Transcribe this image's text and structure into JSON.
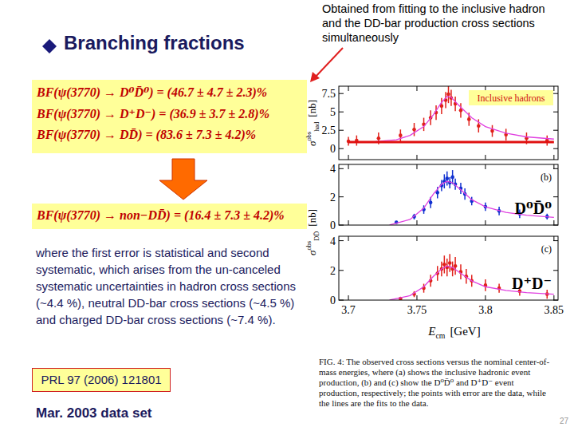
{
  "slide": {
    "heading": "Branching fractions",
    "callout": "Obtained from fitting to the inclusive hadron and the DD-bar production cross sections simultaneously",
    "formulas": [
      "BF(ψ(3770) → D⁰D̄⁰) = (46.7 ± 4.7 ± 2.3)%",
      "BF(ψ(3770) → D⁺D⁻) = (36.9 ± 3.7 ± 2.8)%",
      "BF(ψ(3770) → DD̄) = (83.6 ± 7.3 ± 4.2)%"
    ],
    "derived": "BF(ψ(3770) → non−DD̄) = (16.4 ± 7.3 ± 4.2)%",
    "note": "where the first error is statistical and second systematic, which arises from the un-canceled systematic uncertainties in hadron cross sections (~4.4 %),  neutral DD-bar cross sections (~4.5 %) and charged DD-bar cross sections (~7.4 %).",
    "reference": "PRL 97 (2006) 121801",
    "dataset": "Mar. 2003 data set",
    "caption": "FIG. 4:  The observed cross sections versus the nominal center-of-mass energies, where (a) shows the inclusive hadronic event production, (b) and (c) show the D⁰D̄⁰ and D⁺D⁻ event production, respectively; the points with error are the data, while the lines are the fits to the data.",
    "page": "27"
  },
  "chart_data": [
    {
      "type": "scatter",
      "label": "Inclusive hadrons",
      "ylabel": {
        "symbol": "σ",
        "sup": "obs",
        "sub": "had",
        "unit": "[nb]"
      },
      "xlim": [
        3.693,
        3.853
      ],
      "ylim": [
        -1.5,
        8.5
      ],
      "yticks": [
        0,
        2.5,
        5,
        7.5
      ],
      "xticks": [
        3.7,
        3.75,
        3.8,
        3.85
      ],
      "grid": false,
      "tick_labels": "y",
      "series": [
        {
          "type": "scatter",
          "color": "#e0201a",
          "marker": "circle",
          "x": [
            3.7,
            3.706,
            3.722,
            3.738,
            3.748,
            3.755,
            3.76,
            3.764,
            3.768,
            3.771,
            3.773,
            3.775,
            3.778,
            3.782,
            3.788,
            3.795,
            3.805,
            3.815,
            3.83,
            3.845
          ],
          "values": [
            1.0,
            1.1,
            1.4,
            1.8,
            2.6,
            3.3,
            4.2,
            4.9,
            5.8,
            6.6,
            7.4,
            6.9,
            6.1,
            5.2,
            4.0,
            3.1,
            2.4,
            1.9,
            1.4,
            1.1
          ],
          "errors": [
            0.6,
            0.7,
            0.8,
            0.8,
            0.9,
            0.9,
            1.0,
            1.0,
            1.1,
            1.1,
            1.2,
            1.1,
            1.0,
            1.0,
            0.9,
            0.9,
            0.8,
            0.8,
            0.8,
            0.7
          ]
        },
        {
          "type": "line",
          "color": "#e040e0",
          "line_style": "solid",
          "x": [
            3.7,
            3.72,
            3.735,
            3.745,
            3.755,
            3.762,
            3.768,
            3.772,
            3.775,
            3.78,
            3.79,
            3.8,
            3.815,
            3.83,
            3.85
          ],
          "values": [
            0.9,
            0.95,
            1.2,
            1.8,
            3.0,
            4.6,
            6.3,
            7.1,
            7.0,
            6.0,
            4.2,
            3.0,
            2.1,
            1.6,
            1.3
          ]
        },
        {
          "type": "line",
          "color": "#e01010",
          "line_style": "thick",
          "x": [
            3.7,
            3.85
          ],
          "values": [
            0.9,
            0.9
          ]
        }
      ]
    },
    {
      "type": "scatter",
      "panel": "(b)",
      "label": "D⁰D̄⁰",
      "ylabel": {
        "symbol": "σ",
        "sup": "obs",
        "sub": "DD̄",
        "unit": "[nb]"
      },
      "xlim": [
        3.693,
        3.853
      ],
      "ylim": [
        0,
        4.3
      ],
      "yticks": [
        0,
        2,
        4
      ],
      "xticks": [
        3.7,
        3.75,
        3.8,
        3.85
      ],
      "grid": false,
      "tick_labels": "y",
      "series": [
        {
          "type": "scatter",
          "color": "#1030d0",
          "marker": "circle",
          "x": [
            3.735,
            3.748,
            3.755,
            3.76,
            3.765,
            3.768,
            3.77,
            3.772,
            3.774,
            3.776,
            3.778,
            3.782,
            3.785,
            3.79,
            3.8,
            3.81,
            3.825,
            3.845
          ],
          "values": [
            0.2,
            0.6,
            1.1,
            1.6,
            2.3,
            2.8,
            3.1,
            3.3,
            3.0,
            3.4,
            2.9,
            2.6,
            2.2,
            1.7,
            1.3,
            1.0,
            0.8,
            0.6
          ],
          "errors": [
            0.1,
            0.2,
            0.3,
            0.4,
            0.4,
            0.4,
            0.5,
            0.5,
            0.4,
            0.5,
            0.4,
            0.4,
            0.4,
            0.3,
            0.3,
            0.3,
            0.3,
            0.2
          ]
        },
        {
          "type": "line",
          "color": "#e040e0",
          "line_style": "solid",
          "x": [
            3.73,
            3.745,
            3.755,
            3.762,
            3.768,
            3.772,
            3.776,
            3.782,
            3.79,
            3.8,
            3.815,
            3.83,
            3.85
          ],
          "values": [
            0.0,
            0.4,
            1.2,
            2.2,
            2.9,
            3.1,
            3.0,
            2.5,
            1.8,
            1.3,
            0.9,
            0.7,
            0.55
          ]
        }
      ]
    },
    {
      "type": "scatter",
      "panel": "(c)",
      "label": "D⁺D⁻",
      "xlabel": {
        "symbol": "E",
        "sub": "cm",
        "unit": "[GeV]"
      },
      "xlim": [
        3.693,
        3.853
      ],
      "ylim": [
        0,
        4.3
      ],
      "yticks": [
        0,
        2,
        4
      ],
      "xticks": [
        3.7,
        3.75,
        3.8,
        3.85
      ],
      "grid": false,
      "series": [
        {
          "type": "scatter",
          "color": "#e0201a",
          "marker": "circle",
          "x": [
            3.738,
            3.748,
            3.755,
            3.76,
            3.765,
            3.768,
            3.77,
            3.772,
            3.774,
            3.776,
            3.778,
            3.782,
            3.786,
            3.79,
            3.8,
            3.81,
            3.825,
            3.845
          ],
          "values": [
            0.1,
            0.4,
            0.8,
            1.3,
            1.8,
            2.1,
            2.4,
            2.2,
            2.5,
            2.1,
            2.3,
            1.9,
            1.6,
            1.3,
            1.0,
            0.8,
            0.6,
            0.4
          ],
          "errors": [
            0.1,
            0.2,
            0.3,
            0.4,
            0.5,
            0.5,
            0.6,
            0.6,
            0.6,
            0.5,
            0.6,
            0.5,
            0.5,
            0.4,
            0.4,
            0.3,
            0.3,
            0.3
          ]
        },
        {
          "type": "line",
          "color": "#e040e0",
          "line_style": "solid",
          "x": [
            3.73,
            3.745,
            3.755,
            3.762,
            3.768,
            3.772,
            3.776,
            3.782,
            3.79,
            3.8,
            3.815,
            3.83,
            3.85
          ],
          "values": [
            0.0,
            0.3,
            0.9,
            1.6,
            2.1,
            2.3,
            2.2,
            1.8,
            1.3,
            0.9,
            0.65,
            0.5,
            0.4
          ]
        }
      ]
    }
  ]
}
